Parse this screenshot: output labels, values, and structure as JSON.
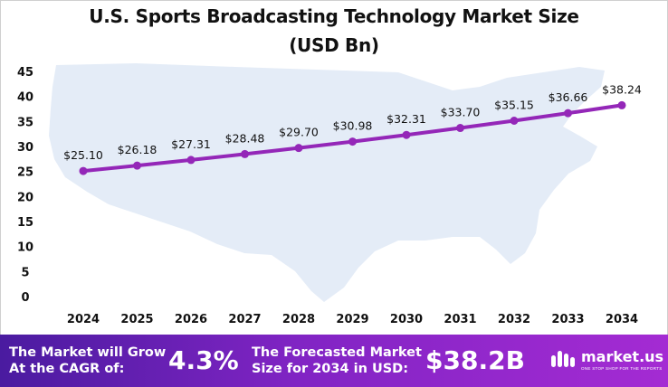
{
  "title_line1": "U.S. Sports Broadcasting Technology Market Size",
  "title_line2": "(USD Bn)",
  "chart_data": {
    "type": "line",
    "categories": [
      "2024",
      "2025",
      "2026",
      "2027",
      "2028",
      "2029",
      "2030",
      "2031",
      "2032",
      "2033",
      "2034"
    ],
    "series": [
      {
        "values": [
          25.1,
          26.18,
          27.31,
          28.48,
          29.7,
          30.98,
          32.31,
          33.7,
          35.15,
          36.66,
          38.24
        ],
        "labels": [
          "$25.10",
          "$26.18",
          "$27.31",
          "$28.48",
          "$29.70",
          "$30.98",
          "$32.31",
          "$33.70",
          "$35.15",
          "$36.66",
          "$38.24"
        ],
        "color": "#9427b8"
      }
    ],
    "ylim": [
      0,
      45
    ],
    "yticks": [
      0,
      5,
      10,
      15,
      20,
      25,
      30,
      35,
      40,
      45
    ],
    "grid": false,
    "legend": "none"
  },
  "footer": {
    "cagr_label_line1": "The Market will Grow",
    "cagr_label_line2": "At the CAGR of:",
    "cagr_value": "4.3%",
    "forecast_label_line1": "The Forecasted Market",
    "forecast_label_line2": "Size for 2034 in USD:",
    "forecast_value": "$38.2B",
    "brand_name": "market.us",
    "brand_tagline": "ONE STOP SHOP FOR THE REPORTS"
  },
  "colors": {
    "line": "#9427b8",
    "map": "#e4ecf7",
    "footer_start": "#4a1ba0",
    "footer_end": "#a42bd3"
  }
}
